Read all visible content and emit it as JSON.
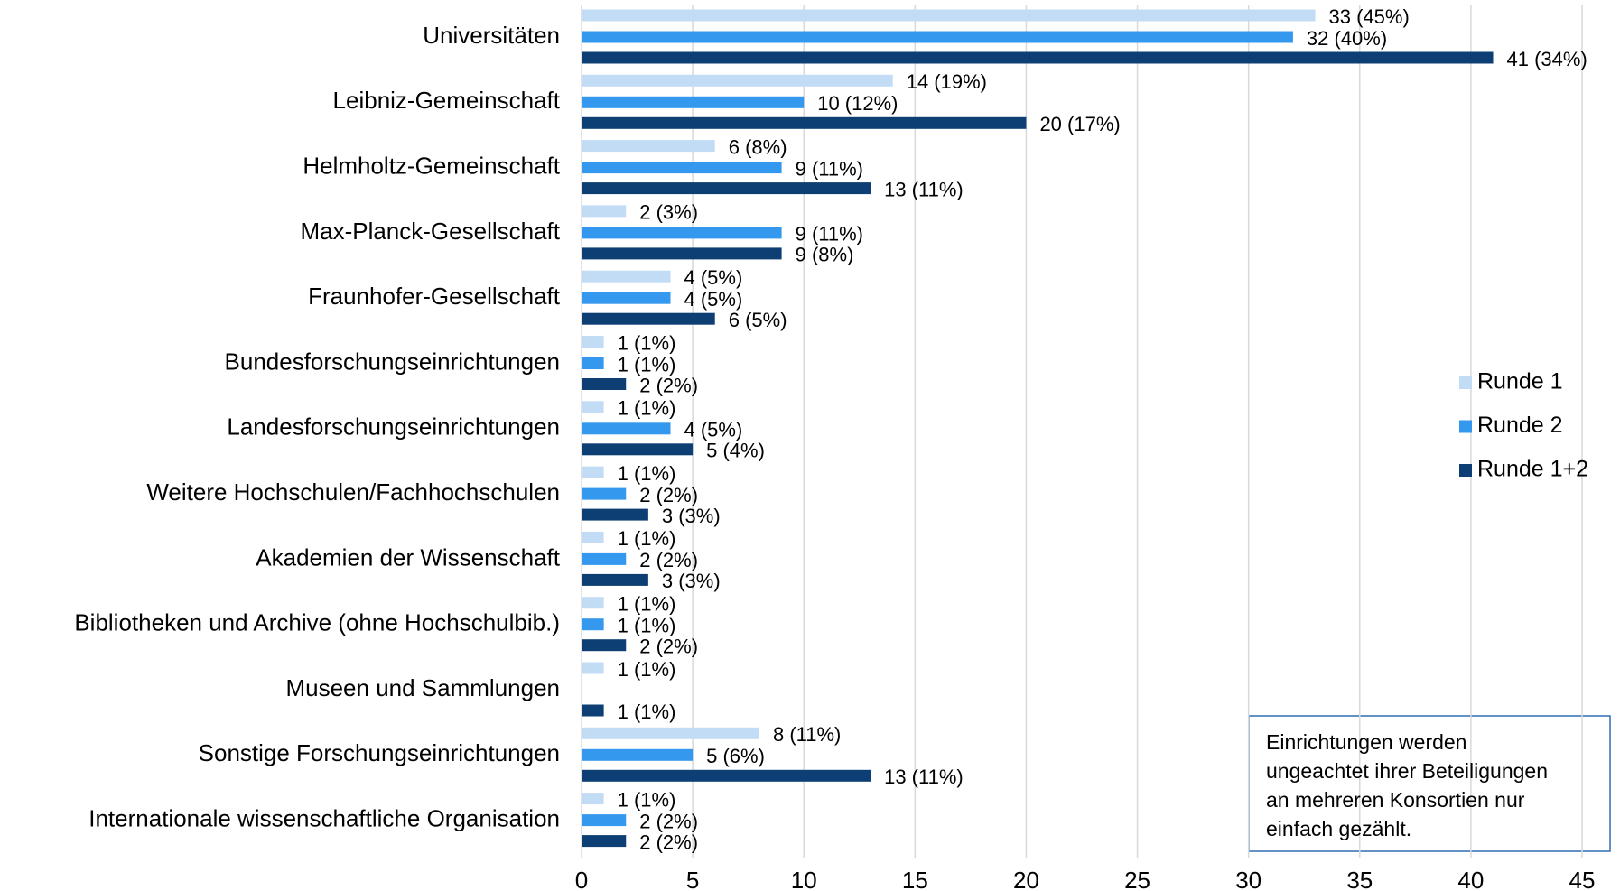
{
  "chart_data": {
    "type": "bar",
    "orientation": "horizontal",
    "categories": [
      "Universitäten",
      "Leibniz-Gemeinschaft",
      "Helmholtz-Gemeinschaft",
      "Max-Planck-Gesellschaft",
      "Fraunhofer-Gesellschaft",
      "Bundesforschungseinrichtungen",
      "Landesforschungseinrichtungen",
      "Weitere Hochschulen/Fachhochschulen",
      "Akademien der Wissenschaft",
      "Bibliotheken und Archive (ohne Hochschulbib.)",
      "Museen und Sammlungen",
      "Sonstige Forschungseinrichtungen",
      "Internationale wissenschaftliche Organisation"
    ],
    "series": [
      {
        "name": "Runde 1",
        "color": "#c2dcf5",
        "values": [
          33,
          14,
          6,
          2,
          4,
          1,
          1,
          1,
          1,
          1,
          1,
          8,
          1
        ],
        "value_labels": [
          "33 (45%)",
          "14 (19%)",
          "6 (8%)",
          "2 (3%)",
          "4 (5%)",
          "1 (1%)",
          "1 (1%)",
          "1 (1%)",
          "1 (1%)",
          "1 (1%)",
          "1 (1%)",
          "8 (11%)",
          "1 (1%)"
        ]
      },
      {
        "name": "Runde 2",
        "color": "#3498ee",
        "values": [
          32,
          10,
          9,
          9,
          4,
          1,
          4,
          2,
          2,
          1,
          null,
          5,
          2
        ],
        "value_labels": [
          "32 (40%)",
          "10 (12%)",
          "9 (11%)",
          "9 (11%)",
          "4 (5%)",
          "1 (1%)",
          "4 (5%)",
          "2 (2%)",
          "2 (2%)",
          "1 (1%)",
          null,
          "5 (6%)",
          "2 (2%)"
        ]
      },
      {
        "name": "Runde 1+2",
        "color": "#0e3f74",
        "values": [
          41,
          20,
          13,
          9,
          6,
          2,
          5,
          3,
          3,
          2,
          1,
          13,
          2
        ],
        "value_labels": [
          "41 (34%)",
          "20 (17%)",
          "13 (11%)",
          "9 (8%)",
          "6 (5%)",
          "2 (2%)",
          "5 (4%)",
          "3 (3%)",
          "3 (3%)",
          "2 (2%)",
          "1 (1%)",
          "13 (11%)",
          "2 (2%)"
        ]
      }
    ],
    "xlim": [
      0,
      45
    ],
    "xticks": [
      0,
      5,
      10,
      15,
      20,
      25,
      30,
      35,
      40,
      45
    ],
    "grid": true,
    "legend": "right",
    "annotation": [
      "Einrichtungen werden",
      "ungeachtet ihrer Beteiligungen",
      "an mehreren Konsortien nur",
      "einfach gezählt."
    ]
  }
}
